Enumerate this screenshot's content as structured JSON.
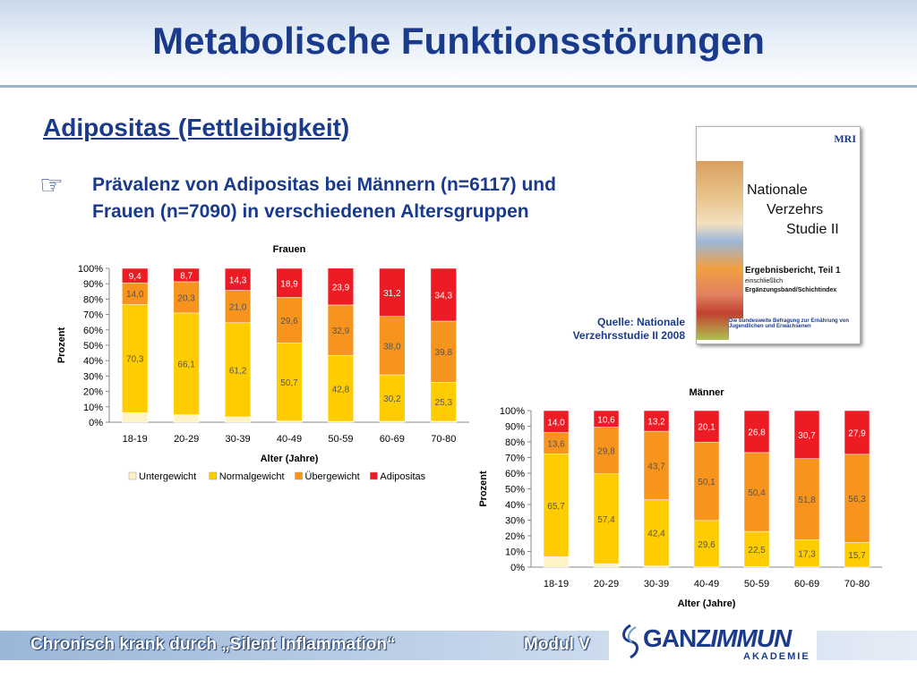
{
  "slide": {
    "title": "Metabolische Funktionsstörungen",
    "subtitle": "Adipositas (Fettleibigkeit)",
    "bullet_icon": "pointing-hand-icon",
    "bullet_line1": "Prävalenz von Adipositas bei Männern (n=6117) und",
    "bullet_line2": "Frauen (n=7090) in verschiedenen Altersgruppen",
    "source_line1": "Quelle: Nationale",
    "source_line2": "Verzehrsstudie II 2008",
    "footer_left": "Chronisch krank durch „Silent Inflammation“",
    "footer_right": "Modul V",
    "logo_part1": "GANZ",
    "logo_part2": "IMMUN",
    "logo_sub": "AKADEMIE"
  },
  "cover": {
    "mri": "MRI",
    "n1": "Nationale",
    "n2": "Verzehrs",
    "n3": "Studie II",
    "report": "Ergebnisbericht, Teil 1",
    "report2": "einschließlich",
    "report3": "Ergänzungsband/Schichtindex",
    "footer": "Die bundesweite Befragung zur Ernährung von Jugendlichen und Erwachsenen"
  },
  "colors": {
    "untergewicht": "#fdf3c4",
    "normalgewicht": "#ffcc00",
    "uebergewicht": "#f7941d",
    "adipositas": "#ed1c24",
    "title": "#1a3a8c"
  },
  "chart_data": [
    {
      "type": "bar",
      "stacked": true,
      "title": "Frauen",
      "xlabel": "Alter (Jahre)",
      "ylabel": "Prozent",
      "ylim": [
        0,
        100
      ],
      "yticks": [
        "0%",
        "10%",
        "20%",
        "30%",
        "40%",
        "50%",
        "60%",
        "70%",
        "80%",
        "90%",
        "100%"
      ],
      "categories": [
        "18-19",
        "20-29",
        "30-39",
        "40-49",
        "50-59",
        "60-69",
        "70-80"
      ],
      "legend_position": "bottom",
      "series": [
        {
          "name": "Untergewicht",
          "values": [
            6.3,
            4.9,
            3.5,
            0.8,
            0.5,
            0.6,
            0.6
          ],
          "labels": [
            "",
            "",
            "",
            "",
            "",
            "",
            ""
          ]
        },
        {
          "name": "Normalgewicht",
          "values": [
            70.3,
            66.1,
            61.2,
            50.7,
            42.8,
            30.2,
            25.3
          ],
          "labels": [
            "70,3",
            "66,1",
            "61,2",
            "50,7",
            "42,8",
            "30,2",
            "25,3"
          ]
        },
        {
          "name": "Übergewicht",
          "values": [
            14.0,
            20.3,
            21.0,
            29.6,
            32.9,
            38.0,
            39.8
          ],
          "labels": [
            "14,0",
            "20,3",
            "21,0",
            "29,6",
            "32,9",
            "38,0",
            "39,8"
          ]
        },
        {
          "name": "Adipositas",
          "values": [
            9.4,
            8.7,
            14.3,
            18.9,
            23.9,
            31.2,
            34.3
          ],
          "labels": [
            "9,4",
            "8,7",
            "14,3",
            "18,9",
            "23,9",
            "31,2",
            "34,3"
          ]
        }
      ]
    },
    {
      "type": "bar",
      "stacked": true,
      "title": "Männer",
      "xlabel": "Alter (Jahre)",
      "ylabel": "Prozent",
      "ylim": [
        0,
        100
      ],
      "yticks": [
        "0%",
        "10%",
        "20%",
        "30%",
        "40%",
        "50%",
        "60%",
        "70%",
        "80%",
        "90%",
        "100%"
      ],
      "categories": [
        "18-19",
        "20-29",
        "30-39",
        "40-49",
        "50-59",
        "60-69",
        "70-80"
      ],
      "legend_position": "none",
      "series": [
        {
          "name": "Untergewicht",
          "values": [
            6.7,
            2.2,
            0.7,
            0.2,
            0.3,
            0.2,
            0.1
          ],
          "labels": [
            "",
            "",
            "",
            "",
            "",
            "",
            ""
          ]
        },
        {
          "name": "Normalgewicht",
          "values": [
            65.7,
            57.4,
            42.4,
            29.6,
            22.5,
            17.3,
            15.7
          ],
          "labels": [
            "65,7",
            "57,4",
            "42,4",
            "29,6",
            "22,5",
            "17,3",
            "15,7"
          ]
        },
        {
          "name": "Übergewicht",
          "values": [
            13.6,
            29.8,
            43.7,
            50.1,
            50.4,
            51.8,
            56.3
          ],
          "labels": [
            "13,6",
            "29,8",
            "43,7",
            "50,1",
            "50,4",
            "51,8",
            "56,3"
          ]
        },
        {
          "name": "Adipositas",
          "values": [
            14.0,
            10.6,
            13.2,
            20.1,
            26.8,
            30.7,
            27.9
          ],
          "labels": [
            "14,0",
            "10,6",
            "13,2",
            "20,1",
            "26,8",
            "30,7",
            "27,9"
          ]
        }
      ]
    }
  ]
}
